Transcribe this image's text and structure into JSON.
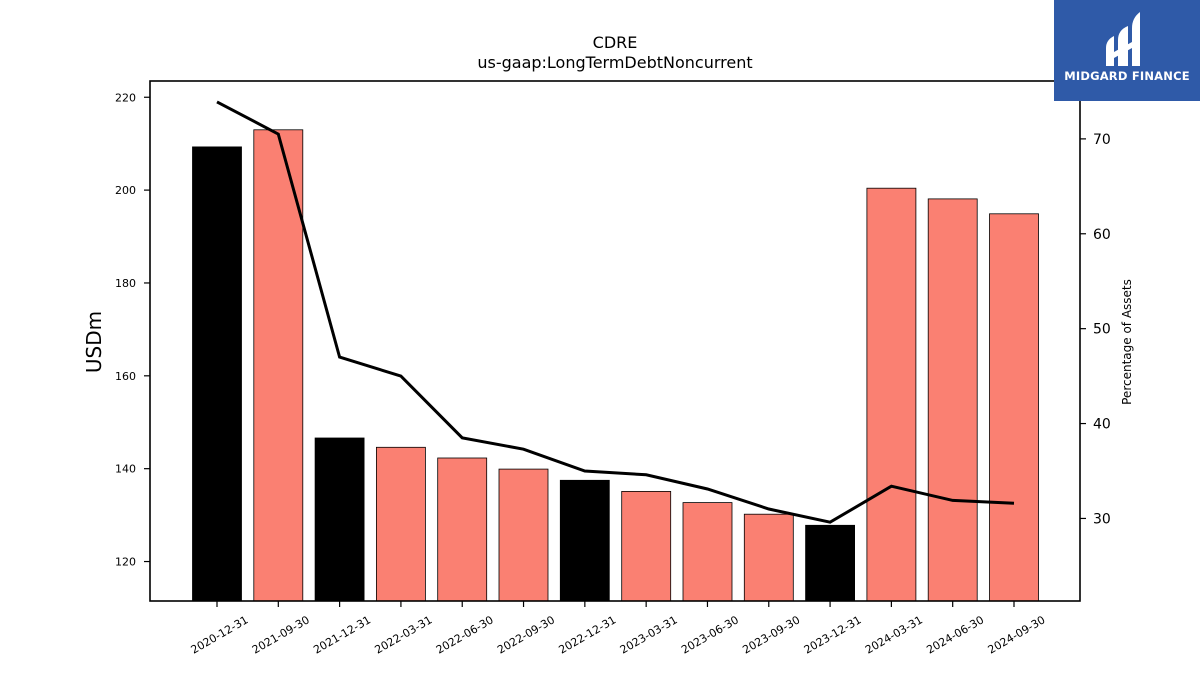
{
  "chart_data": {
    "type": "bar",
    "title": "CDRE",
    "subtitle": "us-gaap:LongTermDebtNoncurrent",
    "ylabel": "USDm",
    "y2label": "Percentage of Assets",
    "categories": [
      "2020-12-31",
      "2021-09-30",
      "2021-12-31",
      "2022-03-31",
      "2022-06-30",
      "2022-09-30",
      "2022-12-31",
      "2023-03-31",
      "2023-06-30",
      "2023-09-30",
      "2023-12-31",
      "2024-03-31",
      "2024-06-30",
      "2024-09-30"
    ],
    "series": [
      {
        "type": "bar",
        "axis": "left",
        "values": [
          209.3,
          213.0,
          146.6,
          144.6,
          142.3,
          139.9,
          137.5,
          135.1,
          132.7,
          130.2,
          127.8,
          200.4,
          198.1,
          194.9
        ],
        "colors": [
          "#000000",
          "#fa8072",
          "#000000",
          "#fa8072",
          "#fa8072",
          "#fa8072",
          "#000000",
          "#fa8072",
          "#fa8072",
          "#fa8072",
          "#000000",
          "#fa8072",
          "#fa8072",
          "#fa8072"
        ]
      },
      {
        "type": "line",
        "axis": "right",
        "color": "#000000",
        "values": [
          73.9,
          70.5,
          47.0,
          45.0,
          38.5,
          37.3,
          35.0,
          34.6,
          33.1,
          31.0,
          29.6,
          33.4,
          31.9,
          31.6
        ]
      }
    ],
    "ylim": [
      111.5,
      223.5
    ],
    "yticks": [
      120,
      140,
      160,
      180,
      200,
      220
    ],
    "y2lim": [
      21.3,
      76.1
    ],
    "y2ticks": [
      30,
      40,
      50,
      60,
      70
    ],
    "grid": false
  },
  "logo": {
    "text": "MIDGARD FINANCE",
    "background": "#2f5aa8"
  }
}
